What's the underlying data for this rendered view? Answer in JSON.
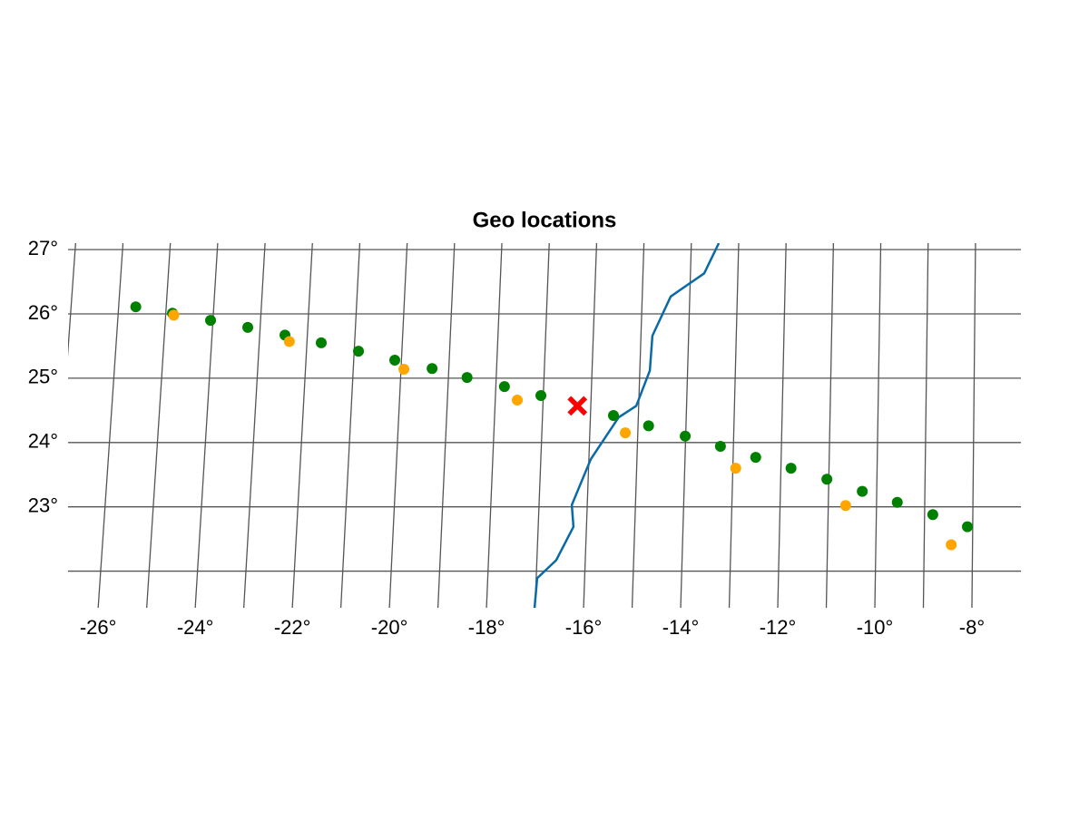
{
  "chart_data": {
    "type": "geo",
    "title": "Geo locations",
    "xlim": [
      -26.62,
      -6.99
    ],
    "ylim": [
      21.43,
      27.1
    ],
    "xticks": [
      {
        "value": -26,
        "label": "-26°"
      },
      {
        "value": -24,
        "label": "-24°"
      },
      {
        "value": -22,
        "label": "-22°"
      },
      {
        "value": -20,
        "label": "-20°"
      },
      {
        "value": -18,
        "label": "-18°"
      },
      {
        "value": -16,
        "label": "-16°"
      },
      {
        "value": -14,
        "label": "-14°"
      },
      {
        "value": -12,
        "label": "-12°"
      },
      {
        "value": -10,
        "label": "-10°"
      },
      {
        "value": -8,
        "label": "-8°"
      }
    ],
    "yticks": [
      {
        "value": 23,
        "label": "23°"
      },
      {
        "value": 24,
        "label": "24°"
      },
      {
        "value": 25,
        "label": "25°"
      },
      {
        "value": 26,
        "label": "26°"
      },
      {
        "value": 27,
        "label": "27°"
      }
    ],
    "xgrid": [
      -27,
      -26,
      -25,
      -24,
      -23,
      -22,
      -21,
      -20,
      -19,
      -18,
      -17,
      -16,
      -15,
      -14,
      -13,
      -12,
      -11,
      -10,
      -9,
      -8
    ],
    "ygrid": [
      22,
      23,
      24,
      25,
      26,
      27
    ],
    "grid_color": "#555555",
    "coastline": {
      "color": "#0a6aa8",
      "lon": [
        -17.01,
        -16.98,
        -16.6,
        -16.27,
        -16.32,
        -15.96,
        -15.41,
        -15.05,
        -14.79,
        -14.76,
        -14.4,
        -13.71,
        -13.42
      ],
      "lat": [
        21.42,
        21.89,
        22.17,
        22.69,
        23.03,
        23.74,
        24.39,
        24.57,
        25.12,
        25.66,
        26.27,
        26.63,
        27.1
      ]
    },
    "series": [
      {
        "color": "#008000",
        "lon": [
          -25.64,
          -24.86,
          -24.05,
          -23.26,
          -22.47,
          -21.7,
          -20.91,
          -20.14,
          -19.35,
          -18.61,
          -17.82,
          -17.05,
          -15.52,
          -14.78,
          -14.01,
          -13.27,
          -12.53,
          -11.79,
          -11.04,
          -10.3,
          -9.57,
          -8.83,
          -8.11
        ],
        "lat": [
          26.11,
          26.01,
          25.9,
          25.79,
          25.67,
          25.55,
          25.42,
          25.28,
          25.15,
          25.01,
          24.87,
          24.73,
          24.42,
          24.26,
          24.1,
          23.94,
          23.77,
          23.6,
          23.43,
          23.24,
          23.07,
          22.88,
          22.69
        ]
      },
      {
        "color": "#ffa500",
        "lon": [
          -24.83,
          -22.37,
          -19.94,
          -17.54,
          -15.26,
          -12.94,
          -10.64,
          -8.44
        ],
        "lat": [
          25.98,
          25.57,
          25.14,
          24.66,
          24.15,
          23.6,
          23.02,
          22.41
        ]
      }
    ],
    "marker": {
      "lon": -16.28,
      "lat": 24.57,
      "color": "#ff0000"
    }
  }
}
